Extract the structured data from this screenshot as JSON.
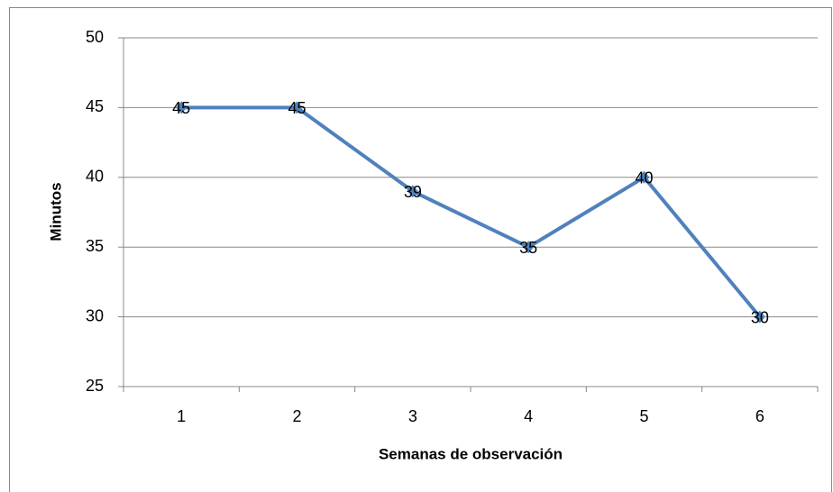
{
  "chart_data": {
    "type": "line",
    "x_label": "Semanas de observación",
    "y_label": "Minutos",
    "categories": [
      "1",
      "2",
      "3",
      "4",
      "5",
      "6"
    ],
    "series": [
      {
        "name": "Minutos",
        "color": "#4f81bd",
        "values": [
          45,
          45,
          39,
          35,
          40,
          30
        ]
      }
    ],
    "ylim": [
      25,
      50
    ],
    "yticks": [
      25,
      30,
      35,
      40,
      45,
      50
    ],
    "grid": true,
    "data_labels": true
  }
}
